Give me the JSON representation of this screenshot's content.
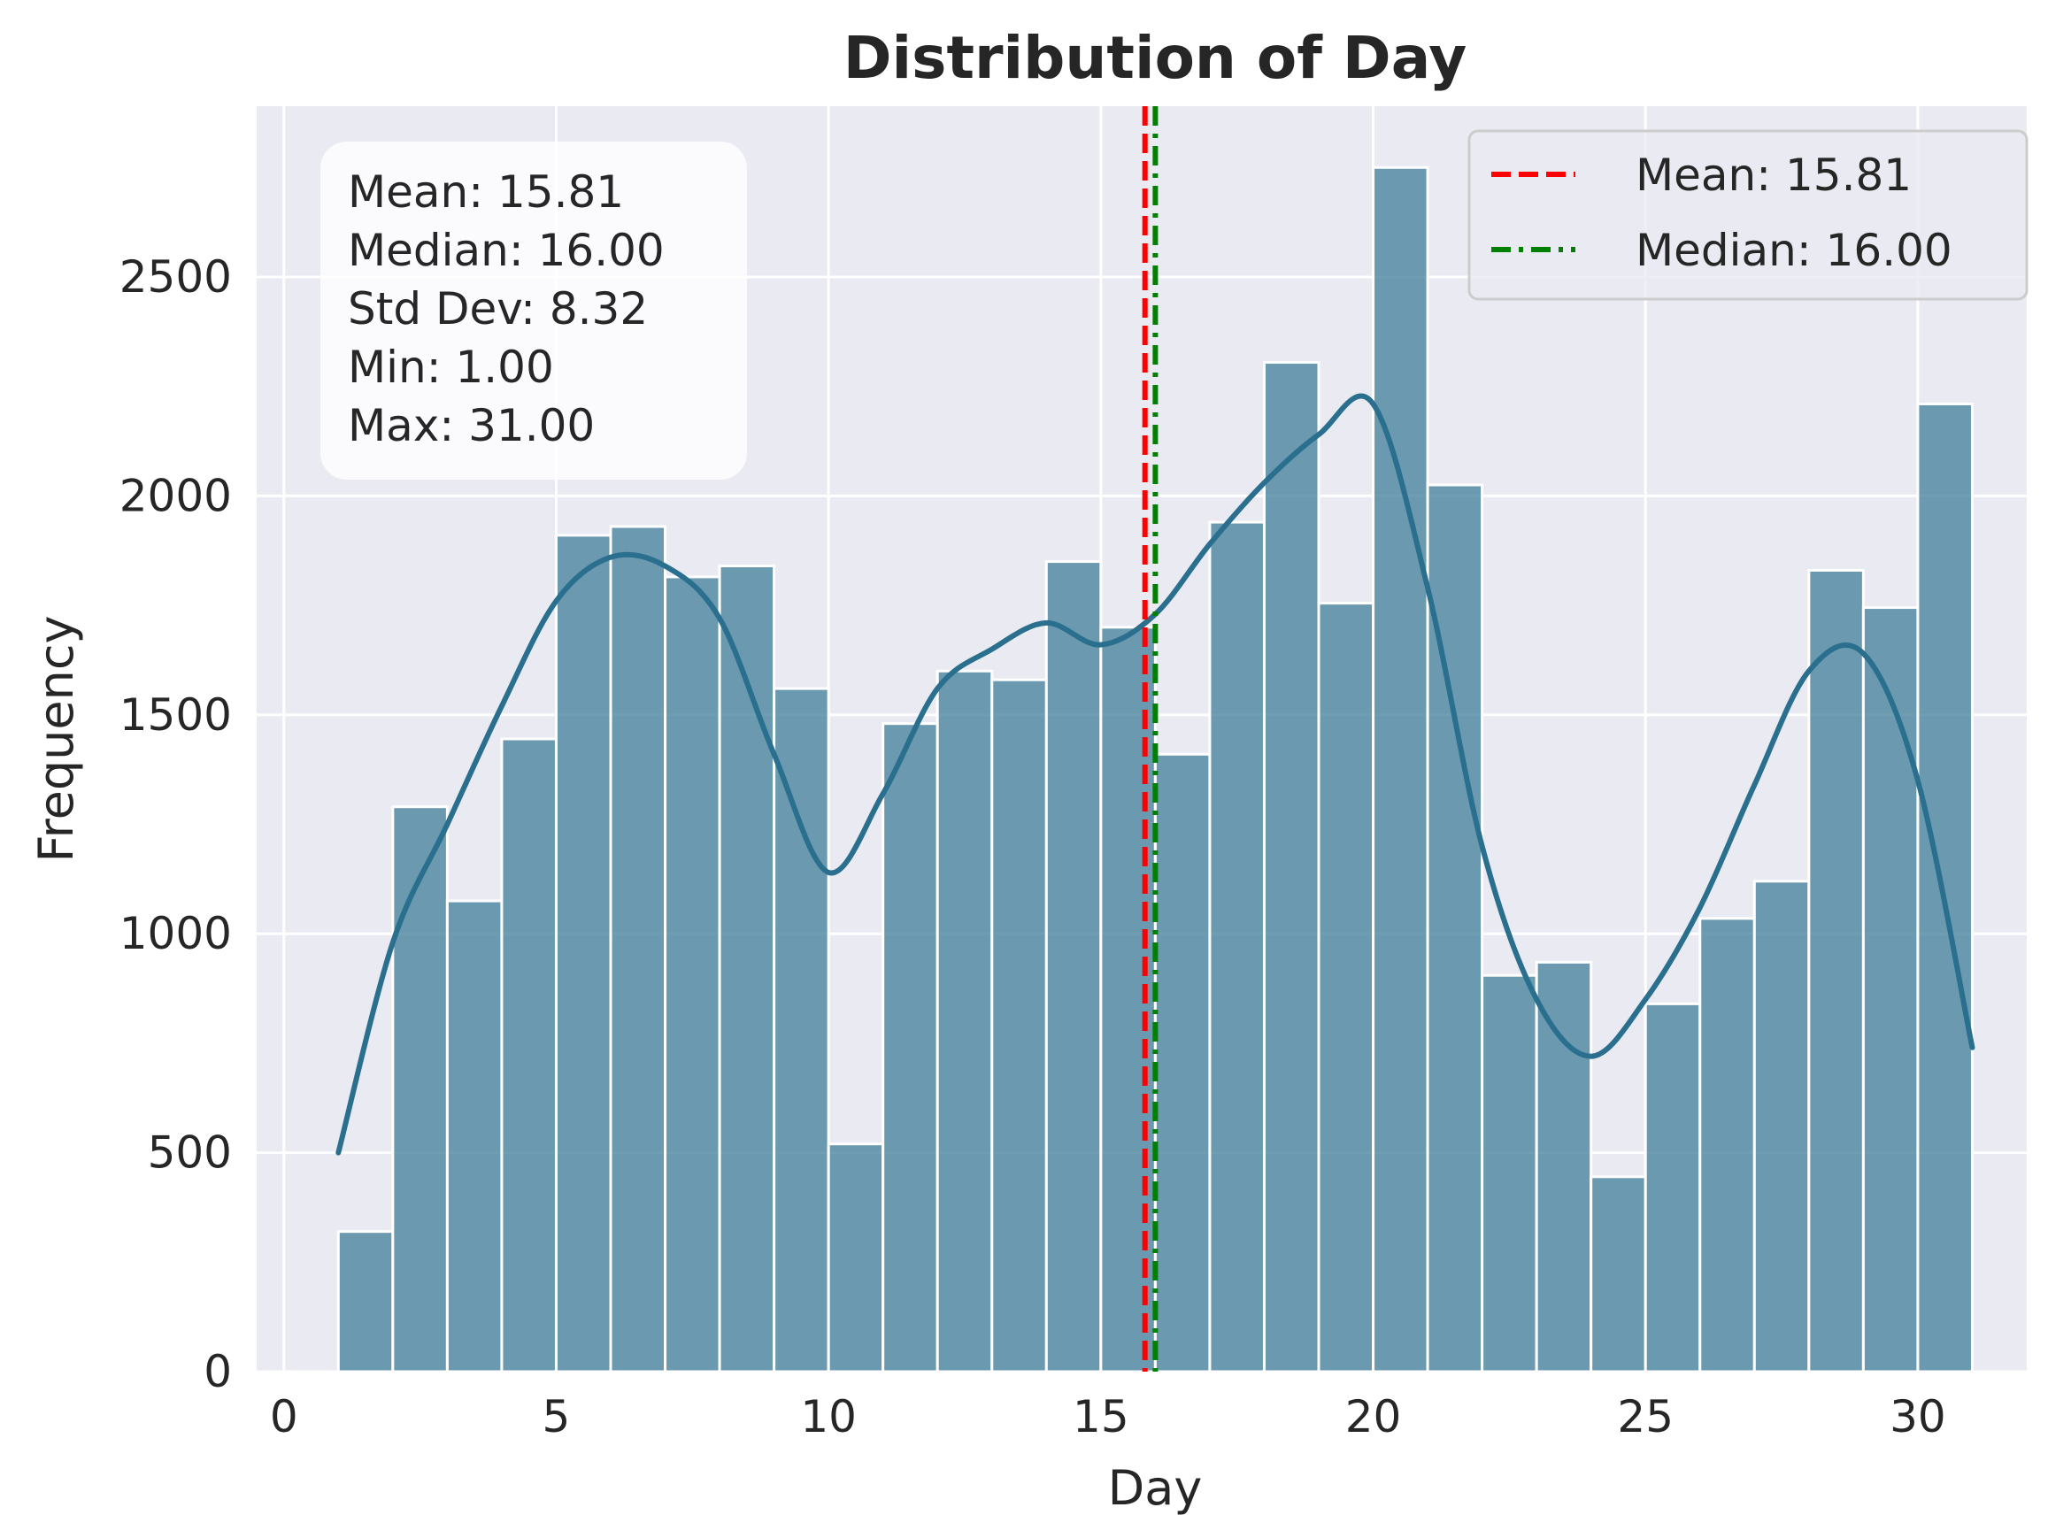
{
  "chart_data": {
    "type": "bar",
    "title": "Distribution of Day",
    "xlabel": "Day",
    "ylabel": "Frequency",
    "xlim": [
      -0.5,
      32.0
    ],
    "ylim": [
      0,
      2890
    ],
    "xticks": [
      0,
      5,
      10,
      15,
      20,
      25,
      30
    ],
    "yticks": [
      0,
      500,
      1000,
      1500,
      2000,
      2500
    ],
    "grid": true,
    "bins": {
      "start": 1.0,
      "width": 1.0,
      "values": [
        320,
        1290,
        1075,
        1445,
        1910,
        1930,
        1815,
        1840,
        1560,
        520,
        1480,
        1600,
        1580,
        1850,
        1700,
        1410,
        1940,
        2305,
        1755,
        2750,
        2025,
        905,
        935,
        445,
        840,
        1035,
        1120,
        1830,
        1745,
        2210
      ]
    },
    "kde": {
      "x": [
        1,
        2,
        3,
        4,
        5,
        6,
        7,
        8,
        9,
        10,
        11,
        12,
        13,
        14,
        15,
        16,
        17,
        18,
        19,
        20,
        21,
        22,
        23,
        24,
        25,
        26,
        27,
        28,
        29,
        30,
        31
      ],
      "y": [
        500,
        980,
        1250,
        1520,
        1760,
        1860,
        1840,
        1720,
        1410,
        1140,
        1320,
        1560,
        1650,
        1710,
        1660,
        1730,
        1890,
        2030,
        2140,
        2210,
        1790,
        1200,
        850,
        720,
        850,
        1060,
        1340,
        1600,
        1640,
        1350,
        740
      ]
    },
    "reference_lines": [
      {
        "label": "Mean: 15.81",
        "x": 15.81,
        "color": "#ff0000",
        "style": "dashed"
      },
      {
        "label": "Median: 16.00",
        "x": 16.0,
        "color": "#008000",
        "style": "dashdot"
      }
    ],
    "stats_box": [
      "Mean: 15.81",
      "Median: 16.00",
      "Std Dev: 8.32",
      "Min: 1.00",
      "Max: 31.00"
    ],
    "legend_position": "top-right",
    "colors": {
      "bar": "#4f87a0",
      "kde": "#2a6f8e",
      "background": "#eaeaf2",
      "grid": "#ffffff"
    }
  }
}
